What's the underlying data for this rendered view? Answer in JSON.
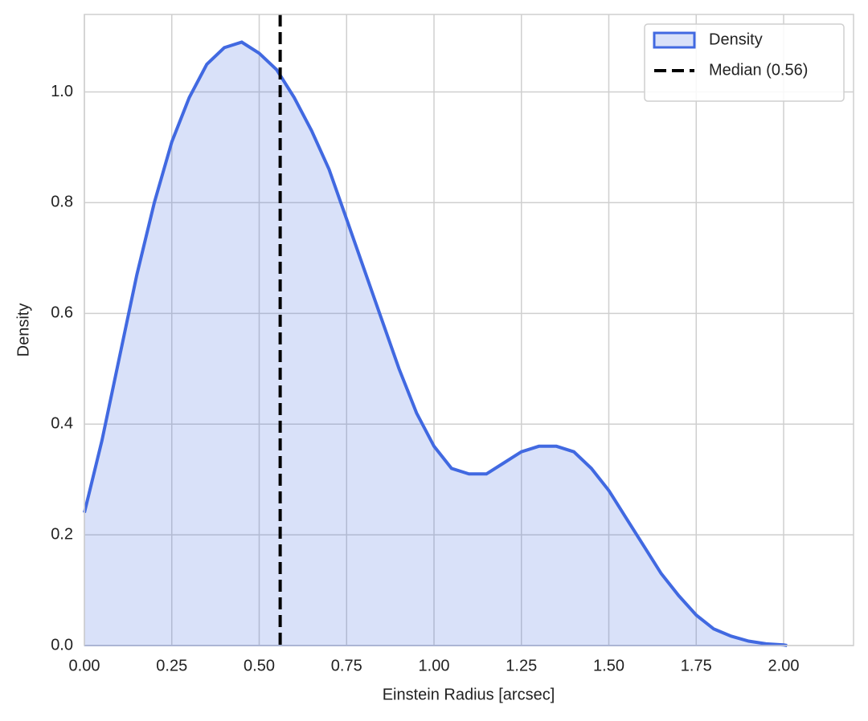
{
  "chart_data": {
    "type": "area",
    "x_label": "Einstein Radius [arcsec]",
    "y_label": "Density",
    "x": [
      0,
      0.05,
      0.1,
      0.15,
      0.2,
      0.25,
      0.3,
      0.35,
      0.4,
      0.45,
      0.5,
      0.55,
      0.6,
      0.65,
      0.7,
      0.75,
      0.8,
      0.85,
      0.9,
      0.95,
      1.0,
      1.05,
      1.1,
      1.15,
      1.2,
      1.25,
      1.3,
      1.35,
      1.4,
      1.45,
      1.5,
      1.55,
      1.6,
      1.65,
      1.7,
      1.75,
      1.8,
      1.85,
      1.9,
      1.95,
      2.0,
      2.01
    ],
    "series": [
      {
        "name": "Density",
        "color": "#4169e1",
        "values": [
          0.24,
          0.37,
          0.52,
          0.67,
          0.8,
          0.91,
          0.99,
          1.05,
          1.08,
          1.09,
          1.07,
          1.04,
          0.99,
          0.93,
          0.86,
          0.77,
          0.68,
          0.59,
          0.5,
          0.42,
          0.36,
          0.32,
          0.31,
          0.31,
          0.33,
          0.35,
          0.36,
          0.36,
          0.35,
          0.32,
          0.28,
          0.23,
          0.18,
          0.13,
          0.09,
          0.055,
          0.03,
          0.017,
          0.008,
          0.003,
          0.001,
          0
        ]
      }
    ],
    "vlines": [
      {
        "name": "Median (0.56)",
        "value": 0.56,
        "color": "#000000",
        "style": "dashed"
      }
    ],
    "xlim": [
      0,
      2.2
    ],
    "ylim": [
      0,
      1.14
    ],
    "xticks": [
      {
        "value": 0,
        "label": "0.00"
      },
      {
        "value": 0.25,
        "label": "0.25"
      },
      {
        "value": 0.5,
        "label": "0.50"
      },
      {
        "value": 0.75,
        "label": "0.75"
      },
      {
        "value": 1,
        "label": "1.00"
      },
      {
        "value": 1.25,
        "label": "1.25"
      },
      {
        "value": 1.5,
        "label": "1.50"
      },
      {
        "value": 1.75,
        "label": "1.75"
      },
      {
        "value": 2,
        "label": "2.00"
      }
    ],
    "yticks": [
      {
        "value": 0,
        "label": "0.0"
      },
      0.2,
      0.4,
      0.6,
      0.8,
      {
        "value": 1,
        "label": "1.0"
      }
    ],
    "grid": true,
    "legend": "upper right"
  }
}
